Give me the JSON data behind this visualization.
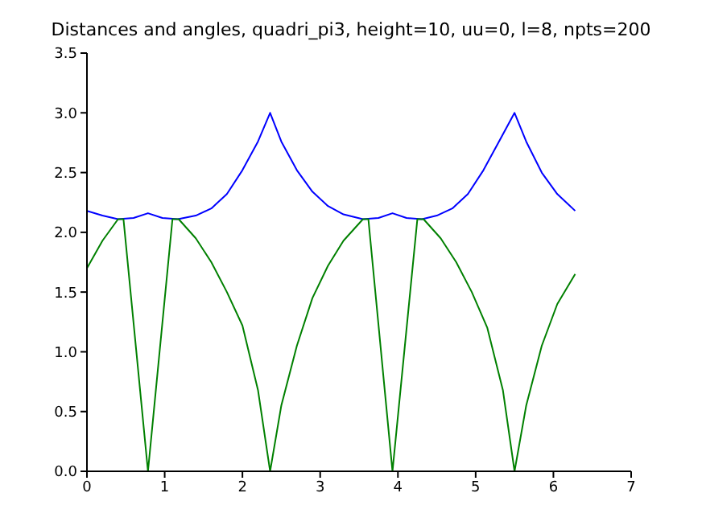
{
  "chart_data": {
    "type": "line",
    "title": "Distances and angles, quadri_pi3, height=10, uu=0, l=8, npts=200",
    "series": [
      {
        "color": "#0000ff",
        "x": [
          0,
          0.2,
          0.4,
          0.6,
          0.785,
          0.97,
          1.17,
          1.4,
          1.6,
          1.8,
          2.0,
          2.2,
          2.356,
          2.5,
          2.7,
          2.9,
          3.1,
          3.3,
          3.55,
          3.75,
          3.93,
          4.11,
          4.31,
          4.5,
          4.7,
          4.9,
          5.1,
          5.3,
          5.5,
          5.65,
          5.85,
          6.05,
          6.28
        ],
        "values": [
          2.18,
          2.14,
          2.11,
          2.12,
          2.16,
          2.12,
          2.11,
          2.14,
          2.2,
          2.32,
          2.52,
          2.76,
          3.0,
          2.76,
          2.52,
          2.34,
          2.22,
          2.15,
          2.11,
          2.12,
          2.16,
          2.12,
          2.11,
          2.14,
          2.2,
          2.32,
          2.52,
          2.76,
          3.0,
          2.76,
          2.5,
          2.32,
          2.18
        ]
      },
      {
        "color": "#008000",
        "x": [
          0,
          0.2,
          0.4,
          0.47,
          0.785,
          1.1,
          1.18,
          1.4,
          1.6,
          1.8,
          2.0,
          2.2,
          2.356,
          2.5,
          2.7,
          2.9,
          3.1,
          3.3,
          3.55,
          3.62,
          3.93,
          4.25,
          4.33,
          4.55,
          4.75,
          4.95,
          5.15,
          5.35,
          5.5,
          5.65,
          5.85,
          6.05,
          6.28
        ],
        "values": [
          1.7,
          1.93,
          2.11,
          2.11,
          0,
          2.11,
          2.11,
          1.95,
          1.75,
          1.5,
          1.22,
          0.68,
          0,
          0.55,
          1.05,
          1.45,
          1.72,
          1.93,
          2.11,
          2.11,
          0,
          2.11,
          2.11,
          1.95,
          1.75,
          1.5,
          1.2,
          0.68,
          0,
          0.55,
          1.05,
          1.4,
          1.65
        ]
      }
    ],
    "xlim": [
      0,
      7
    ],
    "xticks": [
      0,
      1,
      2,
      3,
      4,
      5,
      6,
      7
    ],
    "ylim": [
      0,
      3.5
    ],
    "yticks": [
      {
        "value": 0,
        "label": "0.0"
      },
      {
        "value": 0.5,
        "label": "0.5"
      },
      {
        "value": 1,
        "label": "1.0"
      },
      {
        "value": 1.5,
        "label": "1.5"
      },
      {
        "value": 2,
        "label": "2.0"
      },
      {
        "value": 2.5,
        "label": "2.5"
      },
      {
        "value": 3,
        "label": "3.0"
      },
      {
        "value": 3.5,
        "label": "3.5"
      }
    ],
    "marker": "none",
    "line_style": "solid"
  }
}
